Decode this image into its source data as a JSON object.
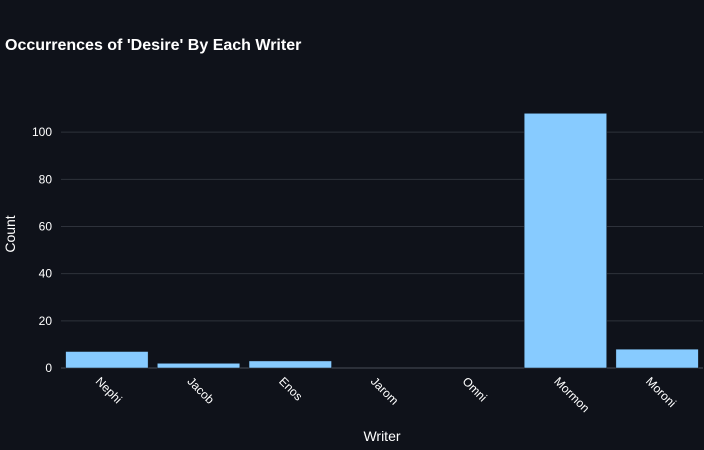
{
  "chart_data": {
    "type": "bar",
    "title": "Occurrences of 'Desire' By Each Writer",
    "xlabel": "Writer",
    "ylabel": "Count",
    "categories": [
      "Nephi",
      "Jacob",
      "Enos",
      "Jarom",
      "Omni",
      "Mormon",
      "Moroni"
    ],
    "values": [
      7,
      2,
      3,
      0,
      0,
      108,
      8
    ],
    "ylim": [
      0,
      120
    ],
    "yticks": [
      0,
      20,
      40,
      60,
      80,
      100
    ],
    "grid": true,
    "bar_color": "#87cbff",
    "background_color": "#0f121a",
    "gridline_color": "#2e323b"
  }
}
